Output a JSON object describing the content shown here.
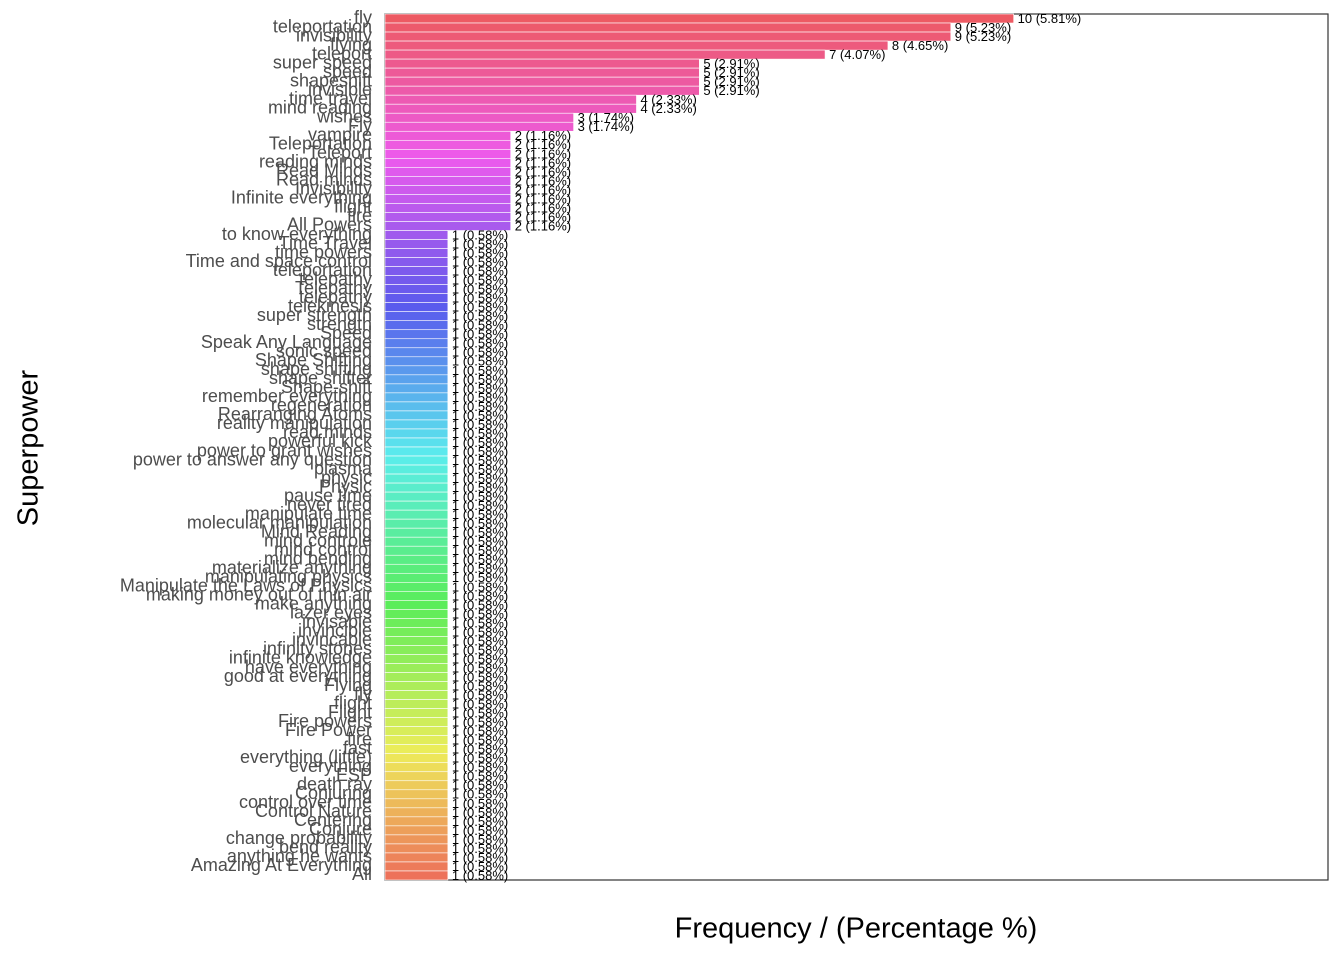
{
  "chart_data": {
    "type": "bar",
    "orientation": "horizontal",
    "x_label": "Frequency / (Percentage %)",
    "y_label": "Superpower",
    "categories": [
      "fly",
      "teleportation",
      "invisibility",
      "flying",
      "teleport",
      "super speed",
      "speed",
      "shapeshift",
      "invisible",
      "time travel",
      "mind reading",
      "wishes",
      "Fly",
      "vampire",
      "Teleportation",
      "Teleport",
      "reading minds",
      "Read Minds",
      "Read minds",
      "Invisibility",
      "Infinite everything",
      "flight",
      "fire",
      "All Powers",
      "to know everything",
      "Time Travel",
      "time powers",
      "Time and space control",
      "teleportation ",
      "telepathy",
      "Telepathy",
      "telepathy ",
      "telekinesis",
      "super strength",
      "strength",
      "Speed",
      "Speak Any Language",
      "sonic speed",
      "Shape Shifting",
      "shape shifting",
      "shape shifter",
      "Shape-shift",
      "remember everything",
      "regeneration",
      "Rearranging Atoms",
      "reality manipulation",
      "read minds",
      "powerful kick",
      "power to grant wishes",
      "power to answer any question",
      "plasma",
      "physic",
      "Physic",
      "pause time",
      "never tired",
      "manipulate time",
      "molecular manipulation",
      "Mind Reading",
      "mind controle",
      "mind control",
      "mind bending",
      "materialize anything",
      "manipulating physics",
      "Manipulate the Laws of Physics",
      "making money out of thin air",
      "make anything",
      "lazer eyes",
      "invisable",
      "invincible",
      "invincable",
      "infinity stones",
      "infinite knowledge",
      "have everything",
      "good at everything",
      "Flying",
      "fly ",
      "flight ",
      "Flight",
      "Fire powers",
      "Fire Power",
      "fire ",
      "fast",
      "everything (little)",
      "everything",
      "ESP",
      "death ray",
      "Conjuring",
      "control over time",
      "Control Nature",
      "Centering",
      "Conjure",
      "change probability",
      "bend reality",
      "anything he wants",
      "Amazing At Everything",
      "All"
    ],
    "values": [
      10,
      9,
      9,
      8,
      7,
      5,
      5,
      5,
      5,
      4,
      4,
      3,
      3,
      2,
      2,
      2,
      2,
      2,
      2,
      2,
      2,
      2,
      2,
      2,
      1,
      1,
      1,
      1,
      1,
      1,
      1,
      1,
      1,
      1,
      1,
      1,
      1,
      1,
      1,
      1,
      1,
      1,
      1,
      1,
      1,
      1,
      1,
      1,
      1,
      1,
      1,
      1,
      1,
      1,
      1,
      1,
      1,
      1,
      1,
      1,
      1,
      1,
      1,
      1,
      1,
      1,
      1,
      1,
      1,
      1,
      1,
      1,
      1,
      1,
      1,
      1,
      1,
      1,
      1,
      1,
      1,
      1,
      1,
      1,
      1,
      1,
      1,
      1,
      1,
      1,
      1,
      1,
      1,
      1,
      1,
      1
    ],
    "value_labels": [
      "10 (5.81%)",
      "9 (5.23%)",
      "9 (5.23%)",
      "8 (4.65%)",
      "7 (4.07%)",
      "5 (2.91%)",
      "5 (2.91%)",
      "5 (2.91%)",
      "5 (2.91%)",
      "4 (2.33%)",
      "4 (2.33%)",
      "3 (1.74%)",
      "3 (1.74%)",
      "2 (1.16%)",
      "2 (1.16%)",
      "2 (1.16%)",
      "2 (1.16%)",
      "2 (1.16%)",
      "2 (1.16%)",
      "2 (1.16%)",
      "2 (1.16%)",
      "2 (1.16%)",
      "2 (1.16%)",
      "2 (1.16%)",
      "1 (0.58%)",
      "1 (0.58%)",
      "1 (0.58%)",
      "1 (0.58%)",
      "1 (0.58%)",
      "1 (0.58%)",
      "1 (0.58%)",
      "1 (0.58%)",
      "1 (0.58%)",
      "1 (0.58%)",
      "1 (0.58%)",
      "1 (0.58%)",
      "1 (0.58%)",
      "1 (0.58%)",
      "1 (0.58%)",
      "1 (0.58%)",
      "1 (0.58%)",
      "1 (0.58%)",
      "1 (0.58%)",
      "1 (0.58%)",
      "1 (0.58%)",
      "1 (0.58%)",
      "1 (0.58%)",
      "1 (0.58%)",
      "1 (0.58%)",
      "1 (0.58%)",
      "1 (0.58%)",
      "1 (0.58%)",
      "1 (0.58%)",
      "1 (0.58%)",
      "1 (0.58%)",
      "1 (0.58%)",
      "1 (0.58%)",
      "1 (0.58%)",
      "1 (0.58%)",
      "1 (0.58%)",
      "1 (0.58%)",
      "1 (0.58%)",
      "1 (0.58%)",
      "1 (0.58%)",
      "1 (0.58%)",
      "1 (0.58%)",
      "1 (0.58%)",
      "1 (0.58%)",
      "1 (0.58%)",
      "1 (0.58%)",
      "1 (0.58%)",
      "1 (0.58%)",
      "1 (0.58%)",
      "1 (0.58%)",
      "1 (0.58%)",
      "1 (0.58%)",
      "1 (0.58%)",
      "1 (0.58%)",
      "1 (0.58%)",
      "1 (0.58%)",
      "1 (0.58%)",
      "1 (0.58%)",
      "1 (0.58%)",
      "1 (0.58%)",
      "1 (0.58%)",
      "1 (0.58%)",
      "1 (0.58%)",
      "1 (0.58%)",
      "1 (0.58%)",
      "1 (0.58%)",
      "1 (0.58%)",
      "1 (0.58%)",
      "1 (0.58%)",
      "1 (0.58%)",
      "1 (0.58%)",
      "1 (0.58%)"
    ],
    "xlim": [
      0,
      15
    ]
  }
}
